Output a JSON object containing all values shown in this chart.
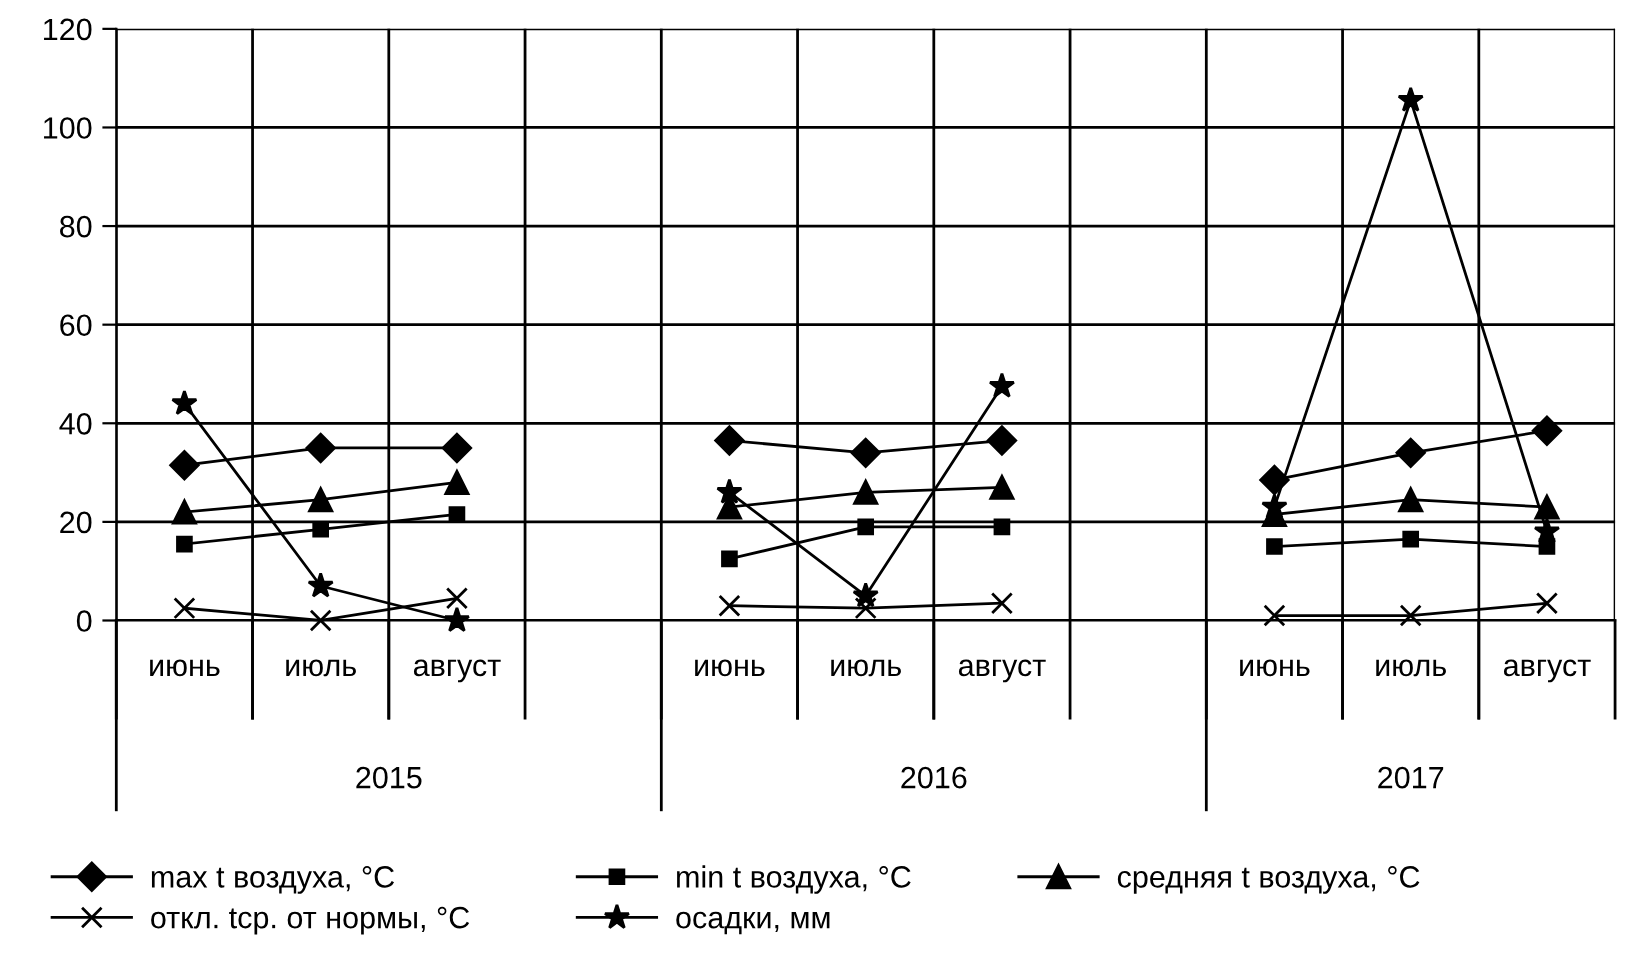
{
  "chart_data": {
    "type": "line",
    "categories": [
      "июнь",
      "июль",
      "август",
      null,
      "июнь",
      "июль",
      "август",
      null,
      "июнь",
      "июль",
      "август"
    ],
    "series": [
      {
        "name": "max t воздуха, °C",
        "color": "#000000",
        "marker": "diamond",
        "values": [
          31.5,
          35,
          35,
          null,
          36.5,
          34,
          36.5,
          null,
          28.5,
          34,
          38.5
        ]
      },
      {
        "name": "min t воздуха, °C",
        "color": "#000000",
        "marker": "square",
        "values": [
          15.5,
          18.5,
          21.5,
          null,
          12.5,
          19,
          19,
          null,
          15,
          16.5,
          15
        ]
      },
      {
        "name": "средняя t воздуха, °C",
        "color": "#000000",
        "marker": "triangle",
        "values": [
          22,
          24.5,
          28,
          null,
          23,
          26,
          27,
          null,
          21.5,
          24.5,
          23
        ]
      },
      {
        "name": "откл. tср. от нормы, °C",
        "color": "#000000",
        "marker": "cross",
        "values": [
          2.5,
          0,
          4.5,
          null,
          3,
          2.5,
          3.5,
          null,
          1,
          1,
          3.5
        ]
      },
      {
        "name": "осадки, мм",
        "color": "#000000",
        "marker": "star",
        "values": [
          44,
          7,
          0,
          null,
          26,
          5,
          47.5,
          null,
          23,
          105.5,
          18
        ]
      }
    ],
    "annotations": [
      "2015",
      "2016",
      "2017"
    ],
    "ylim": [
      0,
      120
    ],
    "yticks": [
      0,
      20,
      40,
      60,
      80,
      100,
      120
    ],
    "grid": true,
    "legend": "bottom",
    "line_style": "solid"
  }
}
